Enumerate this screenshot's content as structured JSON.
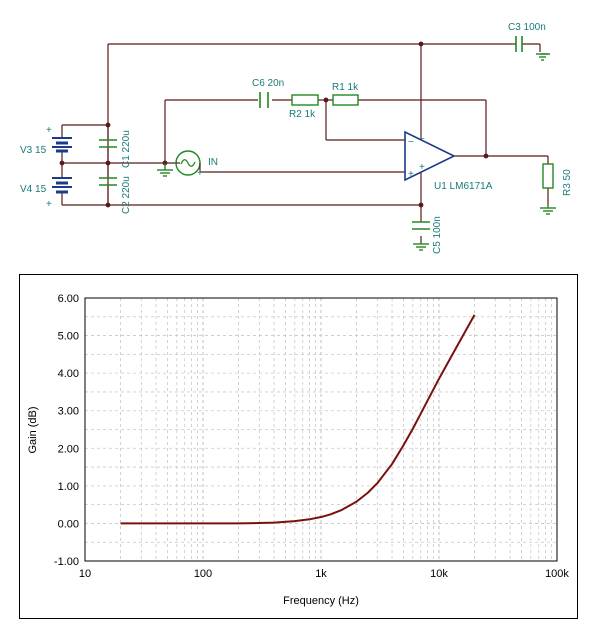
{
  "schematic": {
    "labels": {
      "c3": "C3 100n",
      "c6": "C6 20n",
      "r1": "R1 1k",
      "r2": "R2 1k",
      "v3": "V3 15",
      "v4": "V4 15",
      "c1": "C1 220u",
      "c2": "C2 220u",
      "in": "IN",
      "u1": "U1 LM6171A",
      "r3": "R3 50",
      "c5": "C5 100n",
      "plus": "+",
      "minus": "−"
    }
  },
  "chart_data": {
    "type": "line",
    "xscale": "log",
    "xlabel": "Frequency (Hz)",
    "ylabel": "Gain (dB)",
    "xlim": [
      10,
      100000
    ],
    "ylim": [
      -1.0,
      6.0
    ],
    "xticks": [
      "10",
      "100",
      "1k",
      "10k",
      "100k"
    ],
    "xtick_values": [
      10,
      100,
      1000,
      10000,
      100000
    ],
    "yticks": [
      "-1.00",
      "0.00",
      "1.00",
      "2.00",
      "3.00",
      "4.00",
      "5.00",
      "6.00"
    ],
    "ytick_values": [
      -1,
      0,
      1,
      2,
      3,
      4,
      5,
      6
    ],
    "grid": true,
    "line_color": "#7a1010",
    "series": [
      {
        "x": [
          20,
          50,
          100,
          200,
          400,
          600,
          800,
          1000,
          1200,
          1500,
          2000,
          2500,
          3000,
          4000,
          5000,
          6000,
          7000,
          8000,
          10000,
          12000,
          15000,
          20000
        ],
        "y": [
          0.0,
          0.0,
          0.0,
          0.0,
          0.02,
          0.06,
          0.11,
          0.17,
          0.24,
          0.36,
          0.58,
          0.82,
          1.07,
          1.58,
          2.08,
          2.52,
          2.92,
          3.27,
          3.85,
          4.3,
          4.85,
          5.55
        ]
      }
    ]
  }
}
